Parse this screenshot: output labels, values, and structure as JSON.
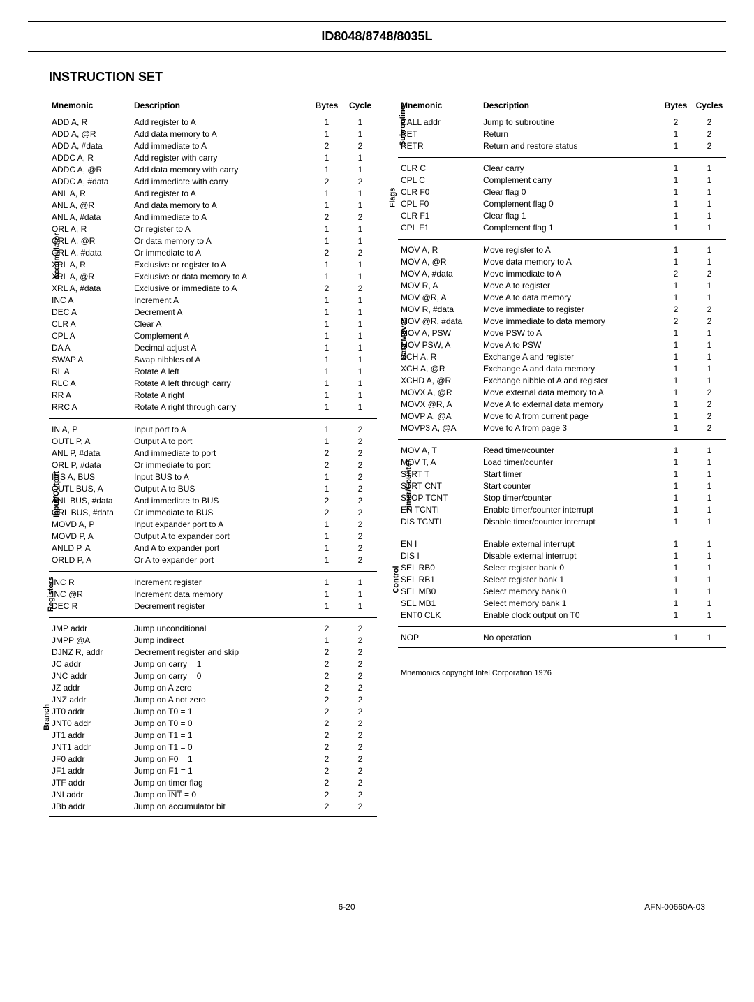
{
  "header": {
    "chip": "ID8048/8748/8035L",
    "title": "INSTRUCTION SET",
    "col_headers": [
      "Mnemonic",
      "Description",
      "Bytes",
      "Cycle"
    ],
    "col_headers_r": [
      "Mnemonic",
      "Description",
      "Bytes",
      "Cycles"
    ],
    "copyright": "Mnemonics copyright Intel Corporation 1976",
    "page_no": "6-20",
    "doc_id": "AFN-00660A-03"
  },
  "left": [
    {
      "label": "Accumulator",
      "rows": [
        [
          "ADD A, R",
          "Add register to A",
          "1",
          "1"
        ],
        [
          "ADD A, @R",
          "Add data memory to A",
          "1",
          "1"
        ],
        [
          "ADD A, #data",
          "Add immediate to A",
          "2",
          "2"
        ],
        [
          "ADDC A, R",
          "Add register with carry",
          "1",
          "1"
        ],
        [
          "ADDC A, @R",
          "Add data memory with carry",
          "1",
          "1"
        ],
        [
          "ADDC A, #data",
          "Add immediate with carry",
          "2",
          "2"
        ],
        [
          "ANL A, R",
          "And register to A",
          "1",
          "1"
        ],
        [
          "ANL A, @R",
          "And data memory to A",
          "1",
          "1"
        ],
        [
          "ANL A, #data",
          "And immediate to A",
          "2",
          "2"
        ],
        [
          "ORL A, R",
          "Or register to A",
          "1",
          "1"
        ],
        [
          "ORL A, @R",
          "Or data memory to A",
          "1",
          "1"
        ],
        [
          "ORL A, #data",
          "Or immediate to A",
          "2",
          "2"
        ],
        [
          "XRL A, R",
          "Exclusive or register to A",
          "1",
          "1"
        ],
        [
          "XRL A, @R",
          "Exclusive or data memory to A",
          "1",
          "1"
        ],
        [
          "XRL A, #data",
          "Exclusive or immediate to A",
          "2",
          "2"
        ],
        [
          "INC A",
          "Increment A",
          "1",
          "1"
        ],
        [
          "DEC A",
          "Decrement A",
          "1",
          "1"
        ],
        [
          "CLR A",
          "Clear A",
          "1",
          "1"
        ],
        [
          "CPL A",
          "Complement A",
          "1",
          "1"
        ],
        [
          "DA A",
          "Decimal adjust A",
          "1",
          "1"
        ],
        [
          "SWAP A",
          "Swap nibbles of A",
          "1",
          "1"
        ],
        [
          "RL A",
          "Rotate A left",
          "1",
          "1"
        ],
        [
          "RLC A",
          "Rotate A left through carry",
          "1",
          "1"
        ],
        [
          "RR A",
          "Rotate A right",
          "1",
          "1"
        ],
        [
          "RRC A",
          "Rotate A right through carry",
          "1",
          "1"
        ]
      ]
    },
    {
      "label": "Input/Output",
      "rows": [
        [
          "IN A, P",
          "Input port to A",
          "1",
          "2"
        ],
        [
          "OUTL P, A",
          "Output A to port",
          "1",
          "2"
        ],
        [
          "ANL P, #data",
          "And immediate to port",
          "2",
          "2"
        ],
        [
          "ORL P, #data",
          "Or immediate to port",
          "2",
          "2"
        ],
        [
          "INS A, BUS",
          "Input BUS to A",
          "1",
          "2"
        ],
        [
          "OUTL BUS, A",
          "Output A to BUS",
          "1",
          "2"
        ],
        [
          "ANL BUS, #data",
          "And immediate to BUS",
          "2",
          "2"
        ],
        [
          "ORL BUS, #data",
          "Or immediate to BUS",
          "2",
          "2"
        ],
        [
          "MOVD A, P",
          "Input expander port to A",
          "1",
          "2"
        ],
        [
          "MOVD P, A",
          "Output A to expander port",
          "1",
          "2"
        ],
        [
          "ANLD P, A",
          "And A to expander port",
          "1",
          "2"
        ],
        [
          "ORLD P, A",
          "Or A to expander port",
          "1",
          "2"
        ]
      ]
    },
    {
      "label": "Registers",
      "rows": [
        [
          "INC R",
          "Increment register",
          "1",
          "1"
        ],
        [
          "INC @R",
          "Increment data memory",
          "1",
          "1"
        ],
        [
          "DEC R",
          "Decrement register",
          "1",
          "1"
        ]
      ]
    },
    {
      "label": "Branch",
      "rows": [
        [
          "JMP addr",
          "Jump unconditional",
          "2",
          "2"
        ],
        [
          "JMPP @A",
          "Jump indirect",
          "1",
          "2"
        ],
        [
          "DJNZ R, addr",
          "Decrement register and skip",
          "2",
          "2"
        ],
        [
          "JC addr",
          "Jump on carry = 1",
          "2",
          "2"
        ],
        [
          "JNC addr",
          "Jump on carry = 0",
          "2",
          "2"
        ],
        [
          "JZ addr",
          "Jump on A zero",
          "2",
          "2"
        ],
        [
          "JNZ addr",
          "Jump on A not zero",
          "2",
          "2"
        ],
        [
          "JT0 addr",
          "Jump on T0 = 1",
          "2",
          "2"
        ],
        [
          "JNT0 addr",
          "Jump on T0 = 0",
          "2",
          "2"
        ],
        [
          "JT1 addr",
          "Jump on T1 = 1",
          "2",
          "2"
        ],
        [
          "JNT1 addr",
          "Jump on T1 = 0",
          "2",
          "2"
        ],
        [
          "JF0 addr",
          "Jump on F0 = 1",
          "2",
          "2"
        ],
        [
          "JF1 addr",
          "Jump on F1 = 1",
          "2",
          "2"
        ],
        [
          "JTF addr",
          "Jump on timer flag",
          "2",
          "2"
        ],
        [
          "JNI addr",
          "Jump on I̅N̅T̅ = 0",
          "2",
          "2"
        ],
        [
          "JBb addr",
          "Jump on accumulator bit",
          "2",
          "2"
        ]
      ]
    }
  ],
  "right": [
    {
      "label": "Subroutine",
      "rows": [
        [
          "CALL addr",
          "Jump to subroutine",
          "2",
          "2"
        ],
        [
          "RET",
          "Return",
          "1",
          "2"
        ],
        [
          "RETR",
          "Return and restore status",
          "1",
          "2"
        ]
      ]
    },
    {
      "label": "Flags",
      "rows": [
        [
          "CLR C",
          "Clear carry",
          "1",
          "1"
        ],
        [
          "CPL C",
          "Complement carry",
          "1",
          "1"
        ],
        [
          "CLR F0",
          "Clear flag 0",
          "1",
          "1"
        ],
        [
          "CPL F0",
          "Complement flag 0",
          "1",
          "1"
        ],
        [
          "CLR F1",
          "Clear flag 1",
          "1",
          "1"
        ],
        [
          "CPL F1",
          "Complement flag 1",
          "1",
          "1"
        ]
      ]
    },
    {
      "label": "Data Moves",
      "rows": [
        [
          "MOV A, R",
          "Move register to A",
          "1",
          "1"
        ],
        [
          "MOV A, @R",
          "Move data memory to A",
          "1",
          "1"
        ],
        [
          "MOV A, #data",
          "Move immediate to A",
          "2",
          "2"
        ],
        [
          "MOV R, A",
          "Move A to register",
          "1",
          "1"
        ],
        [
          "MOV @R, A",
          "Move A to data memory",
          "1",
          "1"
        ],
        [
          "MOV R, #data",
          "Move immediate to register",
          "2",
          "2"
        ],
        [
          "MOV @R, #data",
          "Move immediate to data memory",
          "2",
          "2"
        ],
        [
          "MOV A, PSW",
          "Move PSW to A",
          "1",
          "1"
        ],
        [
          "MOV PSW, A",
          "Move A to PSW",
          "1",
          "1"
        ],
        [
          "XCH A, R",
          "Exchange A and register",
          "1",
          "1"
        ],
        [
          "XCH A, @R",
          "Exchange A and data memory",
          "1",
          "1"
        ],
        [
          "XCHD A, @R",
          "Exchange nibble of A and register",
          "1",
          "1"
        ],
        [
          "MOVX A, @R",
          "Move external data memory to A",
          "1",
          "2"
        ],
        [
          "MOVX @R, A",
          "Move A to external data memory",
          "1",
          "2"
        ],
        [
          "MOVP A, @A",
          "Move to A from current page",
          "1",
          "2"
        ],
        [
          "MOVP3 A, @A",
          "Move to A from page 3",
          "1",
          "2"
        ]
      ]
    },
    {
      "label": "Timer/Counter",
      "rows": [
        [
          "MOV A, T",
          "Read timer/counter",
          "1",
          "1"
        ],
        [
          "MOV T, A",
          "Load timer/counter",
          "1",
          "1"
        ],
        [
          "STRT T",
          "Start timer",
          "1",
          "1"
        ],
        [
          "STRT CNT",
          "Start counter",
          "1",
          "1"
        ],
        [
          "STOP TCNT",
          "Stop timer/counter",
          "1",
          "1"
        ],
        [
          "EN TCNTI",
          "Enable timer/counter interrupt",
          "1",
          "1"
        ],
        [
          "DIS TCNTI",
          "Disable timer/counter interrupt",
          "1",
          "1"
        ]
      ]
    },
    {
      "label": "Control",
      "rows": [
        [
          "EN I",
          "Enable external interrupt",
          "1",
          "1"
        ],
        [
          "DIS I",
          "Disable external interrupt",
          "1",
          "1"
        ],
        [
          "SEL RB0",
          "Select register bank 0",
          "1",
          "1"
        ],
        [
          "SEL RB1",
          "Select register bank 1",
          "1",
          "1"
        ],
        [
          "SEL MB0",
          "Select memory bank 0",
          "1",
          "1"
        ],
        [
          "SEL MB1",
          "Select memory bank 1",
          "1",
          "1"
        ],
        [
          "ENT0 CLK",
          "Enable clock output on T0",
          "1",
          "1"
        ]
      ]
    },
    {
      "label": "",
      "rows": [
        [
          "NOP",
          "No operation",
          "1",
          "1"
        ]
      ]
    }
  ]
}
